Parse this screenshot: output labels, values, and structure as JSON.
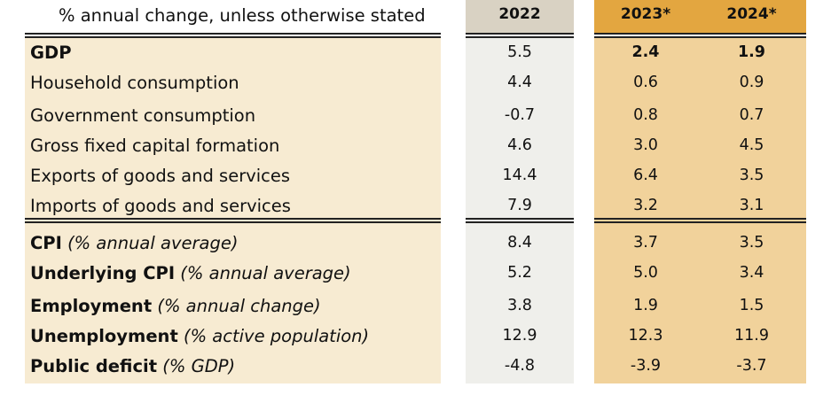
{
  "header": {
    "note": "% annual change, unless otherwise stated",
    "years": [
      "2022",
      "2023*",
      "2024*"
    ]
  },
  "rows": [
    {
      "label": "GDP",
      "unit": "",
      "values": [
        "5.5",
        "2.4",
        "1.9"
      ]
    },
    {
      "label": "Household consumption",
      "unit": "",
      "values": [
        "4.4",
        "0.6",
        "0.9"
      ]
    },
    {
      "label": "Government consumption",
      "unit": "",
      "values": [
        "-0.7",
        "0.8",
        "0.7"
      ]
    },
    {
      "label": "Gross fixed capital formation",
      "unit": "",
      "values": [
        "4.6",
        "3.0",
        "4.5"
      ]
    },
    {
      "label": "Exports of goods and services",
      "unit": "",
      "values": [
        "14.4",
        "6.4",
        "3.5"
      ]
    },
    {
      "label": "Imports of goods and services",
      "unit": "",
      "values": [
        "7.9",
        "3.2",
        "3.1"
      ]
    },
    {
      "label": "CPI",
      "unit": "(% annual average)",
      "values": [
        "8.4",
        "3.7",
        "3.5"
      ]
    },
    {
      "label": "Underlying CPI",
      "unit": "(% annual average)",
      "values": [
        "5.2",
        "5.0",
        "3.4"
      ]
    },
    {
      "label": "Employment",
      "unit": "(% annual change)",
      "values": [
        "3.8",
        "1.9",
        "1.5"
      ]
    },
    {
      "label": "Unemployment",
      "unit": "(% active population)",
      "values": [
        "12.9",
        "12.3",
        "11.9"
      ]
    },
    {
      "label": "Public deficit",
      "unit": "(% GDP)",
      "values": [
        "-4.8",
        "-3.9",
        "-3.7"
      ]
    }
  ],
  "colors": {
    "label_bg": "#f7ebd2",
    "actual_header": "#d9d2c3",
    "actual_bg": "#efefeb",
    "forecast_header": "#e3a640",
    "forecast_bg": "#f1d29b"
  }
}
